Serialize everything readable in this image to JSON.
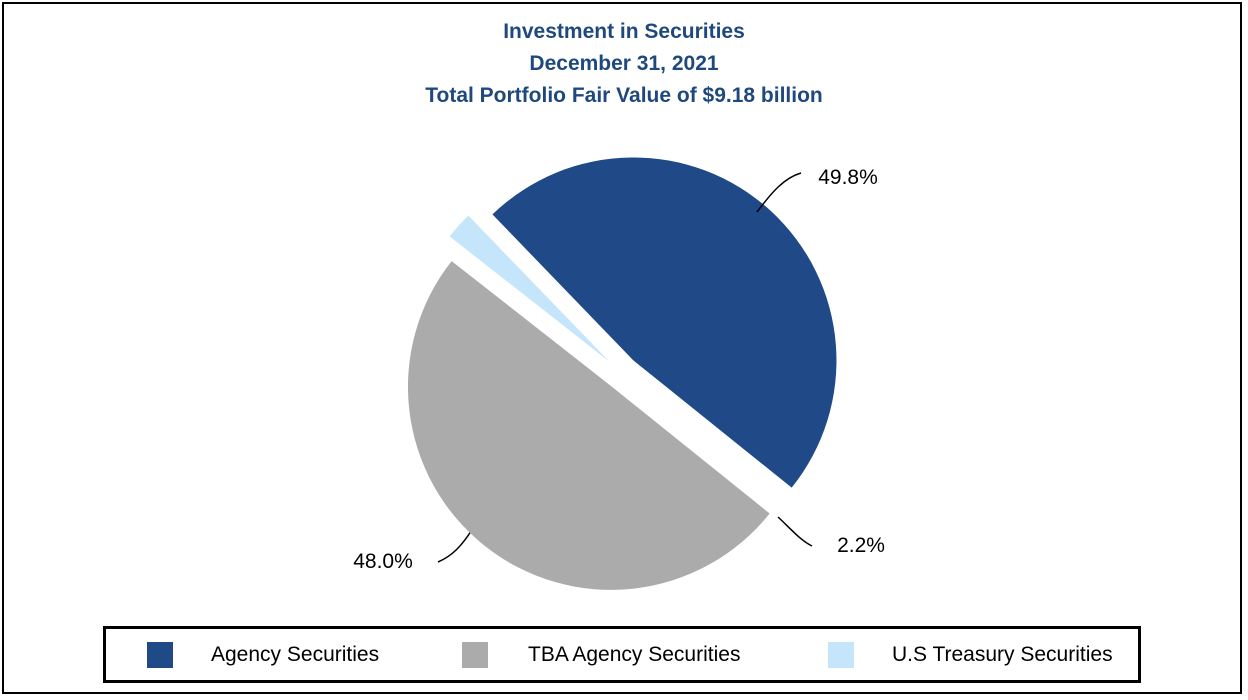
{
  "chart_data": {
    "type": "pie",
    "title": "Investment in Securities",
    "subtitle_lines": [
      "December 31, 2021",
      "Total Portfolio Fair Value of $9.18 billion"
    ],
    "slices": [
      {
        "name": "Agency Securities",
        "value": 48.0,
        "label": "48.0%",
        "color": "#1F4A87"
      },
      {
        "name": "TBA Agency Securities",
        "value": 49.8,
        "label": "49.8%",
        "color": "#ABABAB"
      },
      {
        "name": "U.S Treasury Securities",
        "value": 2.2,
        "label": "2.2%",
        "color": "#C5E5FB"
      }
    ],
    "unit": "%",
    "legend_position": "bottom",
    "exploded": true
  }
}
